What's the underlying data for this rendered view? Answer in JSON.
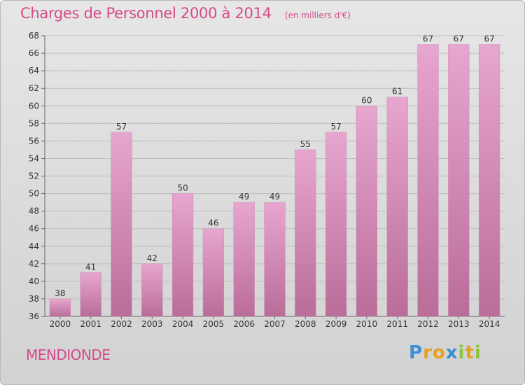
{
  "chart_data": {
    "type": "bar",
    "title": "Charges de Personnel 2000 à 2014",
    "subtitle": "(en milliers d'€)",
    "categories": [
      "2000",
      "2001",
      "2002",
      "2003",
      "2004",
      "2005",
      "2006",
      "2007",
      "2008",
      "2009",
      "2010",
      "2011",
      "2012",
      "2013",
      "2014"
    ],
    "values": [
      38,
      41,
      57,
      42,
      50,
      46,
      49,
      49,
      55,
      57,
      60,
      61,
      67,
      67,
      67
    ],
    "ylim": [
      36,
      68
    ],
    "yticks": [
      36,
      38,
      40,
      42,
      44,
      46,
      48,
      50,
      52,
      54,
      56,
      58,
      60,
      62,
      64,
      66,
      68
    ],
    "grid": true,
    "bar_color": "#d98ab8",
    "label_color": "#333333"
  },
  "footer": {
    "commune": "MENDIONDE",
    "logo_letters": [
      "P",
      "r",
      "o",
      "x",
      "i",
      "t",
      "i"
    ],
    "logo_colors": [
      "#3a8fd6",
      "#e8a020",
      "#e8a020",
      "#3a8fd6",
      "#8bc53f",
      "#e8a020",
      "#8bc53f"
    ]
  }
}
